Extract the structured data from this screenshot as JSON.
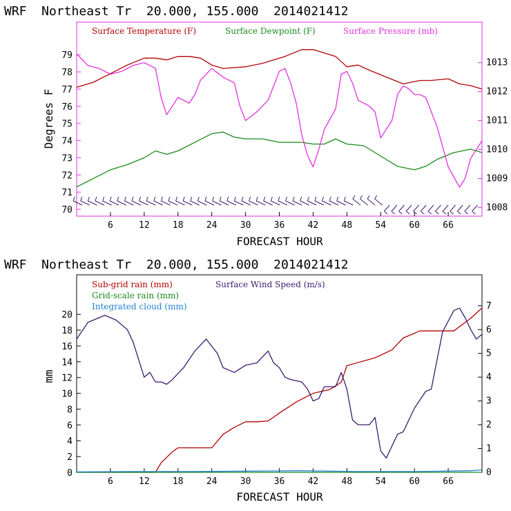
{
  "chart_data": [
    {
      "type": "line",
      "header": "WRF  Northeast Tr  20.000, 155.000  2014021412",
      "xlabel": "FORECAST HOUR",
      "ylabel": "Degrees F",
      "xlim": [
        0,
        72
      ],
      "ylim": [
        69.6,
        80.9
      ],
      "y2lim": [
        1007.7,
        1014.4
      ],
      "x_ticks": [
        6,
        12,
        18,
        24,
        30,
        36,
        42,
        48,
        54,
        60,
        66
      ],
      "y_ticks": [
        70,
        71,
        72,
        73,
        74,
        75,
        76,
        77,
        78,
        79
      ],
      "y2_ticks": [
        1008,
        1009,
        1010,
        1011,
        1012,
        1013
      ],
      "x_tick_labels": [
        "6",
        "12",
        "18",
        "24",
        "30",
        "36",
        "42",
        "48",
        "54",
        "60",
        "66"
      ],
      "y_tick_labels": [
        "70",
        "71",
        "72",
        "73",
        "74",
        "75",
        "76",
        "77",
        "78",
        "79"
      ],
      "y2_tick_labels": [
        "1008",
        "1009",
        "1010",
        "1011",
        "1012",
        "1013"
      ],
      "series": [
        {
          "name": "Surface Temperature (F)",
          "axis": "left",
          "color": "#b00000",
          "x": [
            0,
            3,
            6,
            9,
            12,
            14,
            16,
            18,
            20,
            22,
            24,
            26,
            30,
            33,
            37,
            40,
            42,
            44,
            46,
            48,
            50,
            52,
            55,
            58,
            61,
            63,
            66,
            68,
            70,
            72
          ],
          "y": [
            77.1,
            77.4,
            77.9,
            78.4,
            78.8,
            78.8,
            78.7,
            78.9,
            78.9,
            78.8,
            78.4,
            78.2,
            78.3,
            78.5,
            78.9,
            79.3,
            79.3,
            79.1,
            78.9,
            78.3,
            78.4,
            78.1,
            77.7,
            77.3,
            77.5,
            77.5,
            77.6,
            77.3,
            77.2,
            77.0
          ]
        },
        {
          "name": "Surface Dewpoint (F)",
          "axis": "left",
          "color": "#1a8a1a",
          "x": [
            0,
            3,
            6,
            9,
            12,
            14,
            16,
            18,
            21,
            24,
            26,
            28,
            30,
            33,
            36,
            40,
            42,
            44,
            46,
            48,
            51,
            54,
            57,
            60,
            62,
            64,
            67,
            70,
            72
          ],
          "y": [
            71.3,
            71.8,
            72.3,
            72.6,
            73.0,
            73.4,
            73.2,
            73.4,
            73.9,
            74.4,
            74.5,
            74.2,
            74.1,
            74.1,
            73.9,
            73.9,
            73.8,
            73.8,
            74.1,
            73.8,
            73.7,
            73.1,
            72.5,
            72.3,
            72.5,
            72.9,
            73.3,
            73.5,
            73.3
          ]
        },
        {
          "name": "Surface Pressure (mb)",
          "axis": "right",
          "color": "#e030e0",
          "x": [
            0,
            1,
            2,
            4,
            6,
            8,
            10,
            12,
            14,
            15,
            16,
            18,
            20,
            21,
            22,
            24,
            26,
            28,
            29,
            30,
            32,
            34,
            36,
            37,
            38,
            39,
            40,
            41,
            42,
            43,
            44,
            46,
            47,
            48,
            49,
            50,
            52,
            53,
            54,
            56,
            57,
            58,
            59,
            60,
            61,
            62,
            64,
            66,
            68,
            69,
            70,
            72
          ],
          "y": [
            1013.3,
            1013.1,
            1012.9,
            1012.8,
            1012.6,
            1012.7,
            1012.9,
            1013.0,
            1012.8,
            1011.8,
            1011.2,
            1011.8,
            1011.6,
            1011.9,
            1012.4,
            1012.8,
            1012.5,
            1012.3,
            1011.5,
            1011.0,
            1011.3,
            1011.7,
            1012.7,
            1012.8,
            1012.3,
            1011.6,
            1010.5,
            1009.8,
            1009.4,
            1010.0,
            1010.7,
            1011.4,
            1012.6,
            1012.7,
            1012.3,
            1011.7,
            1011.5,
            1011.3,
            1010.4,
            1011.0,
            1011.9,
            1012.2,
            1012.1,
            1011.9,
            1011.9,
            1011.8,
            1010.8,
            1009.4,
            1008.7,
            1009.0,
            1009.7,
            1010.3
          ]
        }
      ],
      "wind_barbs_note": "wind barbs along bottom",
      "legend": [
        "Surface Temperature (F)",
        "Surface Dewpoint (F)",
        "Surface Pressure (mb)"
      ]
    },
    {
      "type": "line",
      "header": "WRF  Northeast Tr  20.000, 155.000  2014021412",
      "xlabel": "FORECAST HOUR",
      "ylabel": "mm",
      "xlim": [
        0,
        72
      ],
      "ylim": [
        0,
        25
      ],
      "y2lim": [
        0,
        8.3
      ],
      "x_ticks": [
        6,
        12,
        18,
        24,
        30,
        36,
        42,
        48,
        54,
        60,
        66
      ],
      "y_ticks": [
        0,
        2,
        4,
        6,
        8,
        10,
        12,
        14,
        16,
        18,
        20
      ],
      "y2_ticks": [
        0,
        1,
        2,
        3,
        4,
        5,
        6,
        7
      ],
      "x_tick_labels": [
        "6",
        "12",
        "18",
        "24",
        "30",
        "36",
        "42",
        "48",
        "54",
        "60",
        "66"
      ],
      "y_tick_labels": [
        "0",
        "2",
        "4",
        "6",
        "8",
        "10",
        "12",
        "14",
        "16",
        "18",
        "20"
      ],
      "y2_tick_labels": [
        "0",
        "1",
        "2",
        "3",
        "4",
        "5",
        "6",
        "7"
      ],
      "series": [
        {
          "name": "Sub-grid rain (mm)",
          "axis": "left",
          "color": "#b00000",
          "x": [
            0,
            14,
            15,
            17,
            18,
            21,
            24,
            26,
            28,
            30,
            32,
            34,
            36,
            39,
            42,
            45,
            47,
            48,
            53,
            56,
            58,
            61,
            67,
            70,
            72
          ],
          "y": [
            0,
            0,
            1.2,
            2.6,
            3.1,
            3.1,
            3.1,
            4.8,
            5.7,
            6.4,
            6.4,
            6.5,
            7.5,
            8.9,
            10.0,
            10.5,
            11.4,
            13.5,
            14.5,
            15.5,
            17.0,
            17.9,
            17.9,
            19.5,
            20.8
          ]
        },
        {
          "name": "Grid-scale rain (mm)",
          "axis": "left",
          "color": "#1a8a1a",
          "x": [
            0,
            72
          ],
          "y": [
            0,
            0
          ]
        },
        {
          "name": "Integrated cloud (mm)",
          "axis": "left",
          "color": "#1e7fd0",
          "x": [
            0,
            10,
            20,
            30,
            40,
            50,
            60,
            65,
            70,
            72
          ],
          "y": [
            0.05,
            0.1,
            0.1,
            0.15,
            0.2,
            0.1,
            0.1,
            0.15,
            0.2,
            0.3
          ]
        },
        {
          "name": "Surface Wind Speed (m/s)",
          "axis": "right",
          "color": "#3a1a6e",
          "x": [
            0,
            2,
            4,
            5,
            6,
            7,
            8,
            9,
            10,
            12,
            13,
            14,
            15,
            16,
            17,
            19,
            21,
            23,
            25,
            26,
            28,
            30,
            32,
            34,
            35,
            36,
            37,
            38,
            40,
            41,
            42,
            43,
            44,
            46,
            47,
            48,
            49,
            50,
            51,
            52,
            53,
            54,
            55,
            57,
            58,
            60,
            62,
            63,
            65,
            67,
            68,
            69,
            70,
            71,
            72
          ],
          "y": [
            5.6,
            6.3,
            6.5,
            6.6,
            6.5,
            6.4,
            6.2,
            6.0,
            5.5,
            4.0,
            4.2,
            3.8,
            3.8,
            3.7,
            3.9,
            4.4,
            5.1,
            5.6,
            5.0,
            4.4,
            4.2,
            4.5,
            4.6,
            5.1,
            4.6,
            4.4,
            4.0,
            3.9,
            3.8,
            3.5,
            3.0,
            3.1,
            3.6,
            3.6,
            4.2,
            3.5,
            2.2,
            2.0,
            2.0,
            2.0,
            2.3,
            0.9,
            0.6,
            1.6,
            1.7,
            2.7,
            3.4,
            3.5,
            5.9,
            6.8,
            6.9,
            6.5,
            6.0,
            5.6,
            5.8
          ]
        }
      ],
      "legend": [
        "Sub-grid rain (mm)",
        "Surface Wind Speed (m/s)",
        "Grid-scale rain (mm)",
        "Integrated cloud (mm)"
      ]
    }
  ]
}
